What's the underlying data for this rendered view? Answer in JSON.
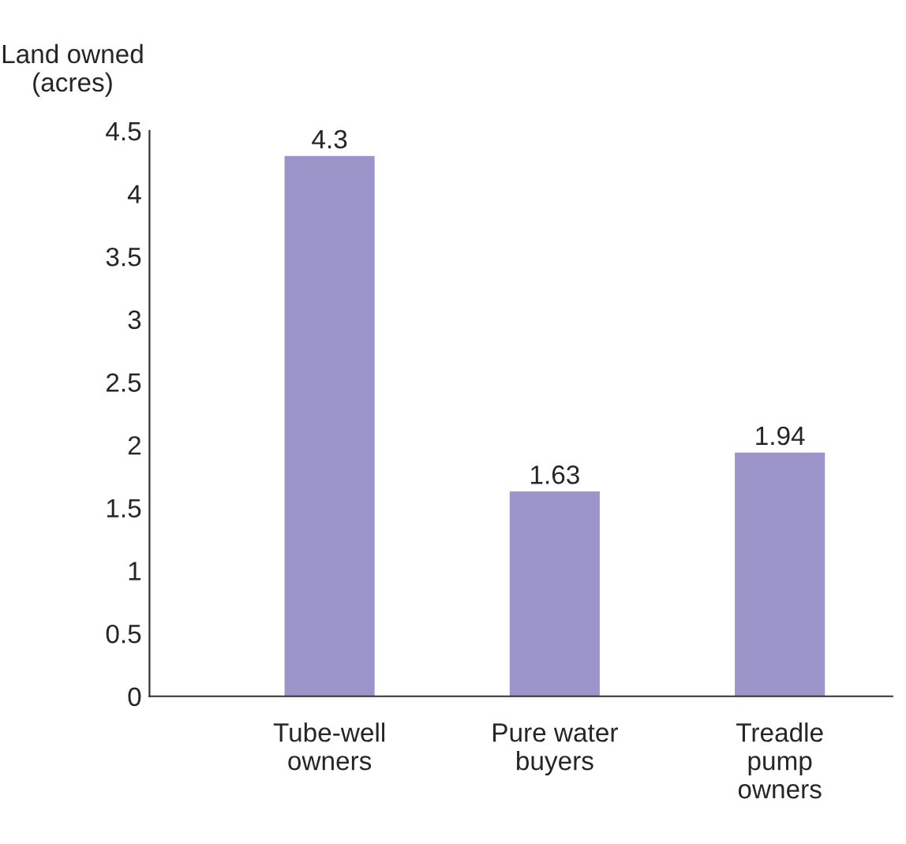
{
  "chart_data": {
    "type": "bar",
    "ylabel": "Land owned\n(acres)",
    "categories": [
      "Tube-well\nowners",
      "Pure water\nbuyers",
      "Treadle\npump\nowners"
    ],
    "values": [
      4.3,
      1.63,
      1.94
    ],
    "color": "#9b95c9",
    "data_labels": true,
    "ylim": [
      0,
      4.5
    ],
    "yticks": [
      0,
      0.5,
      1,
      1.5,
      2,
      2.5,
      3,
      3.5,
      4,
      4.5
    ],
    "grid": false,
    "legend": false
  }
}
